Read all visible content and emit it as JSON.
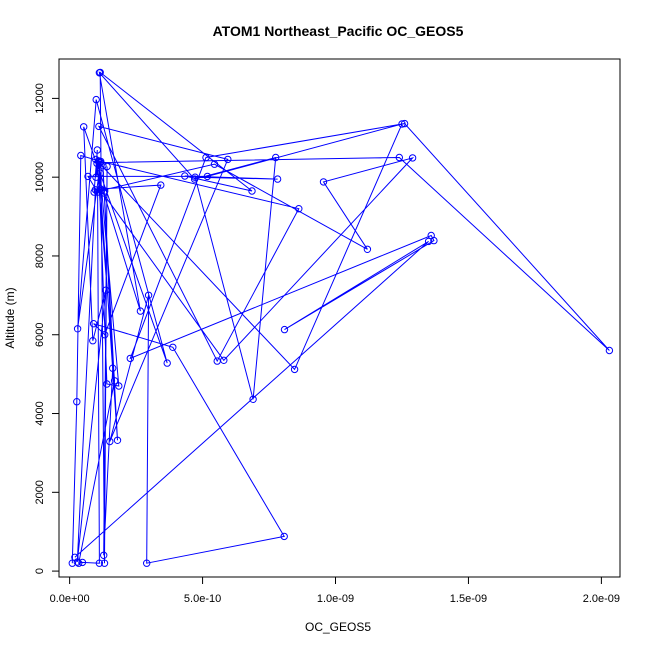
{
  "chart_data": {
    "type": "line",
    "title": "ATOM1 Northeast_Pacific OC_GEOS5",
    "xlabel": "OC_GEOS5",
    "ylabel": "Altitude (m)",
    "xlim": [
      -4e-11,
      2.07e-09
    ],
    "ylim": [
      -150,
      13000
    ],
    "x_ticks": [
      0,
      5e-10,
      1e-09,
      1.5e-09,
      2e-09
    ],
    "x_tick_labels": [
      "0.0e+00",
      "5.0e-10",
      "1.0e-09",
      "1.5e-09",
      "2.0e-09"
    ],
    "y_ticks": [
      0,
      2000,
      4000,
      6000,
      8000,
      10000,
      12000
    ],
    "y_tick_labels": [
      "0",
      "2000",
      "4000",
      "6000",
      "8000",
      "10000",
      "12000"
    ],
    "grid": false,
    "markers": "open-circle",
    "series": [
      {
        "color": "#0000ff",
        "x": [
          1e-11,
          2.7e-11,
          4.2e-11,
          1.17e-10,
          3e-11,
          1e-10,
          3.67e-10,
          5.3e-11,
          8.7e-11,
          1.36e-10,
          2.9e-11,
          9.7e-11,
          1.32e-10,
          1.28e-10,
          2.66e-10,
          1.12e-10,
          4.7e-10,
          7.75e-10,
          6.9e-10,
          4.72e-10,
          7.82e-10,
          4.33e-10,
          6.86e-10,
          1.15e-10,
          1.31e-10,
          1.41e-10,
          1.28e-10,
          1.62e-10,
          1.25e-10,
          1.8e-10,
          1.16e-10,
          3.43e-10,
          1.32e-10,
          9e-11,
          3.88e-10,
          8.07e-10,
          2.9e-10,
          2.97e-10,
          1.51e-10,
          5.95e-10,
          1.1e-10,
          5.55e-10,
          8.62e-10,
          1.1e-10,
          9.9e-11,
          1.04e-10,
          9.2e-11,
          5.45e-10,
          1.12e-09,
          9.55e-10,
          1.29e-09,
          5.8e-10,
          1.18e-10,
          1.09e-10,
          1.4e-10,
          1.85e-10,
          1.15e-10,
          1.03e-10,
          1.69e-10,
          3.4e-11,
          4.8e-11,
          1.12e-10,
          1.05e-10,
          6.9e-11,
          5.18e-10,
          1.25e-09,
          8.46e-10,
          9.8e-11,
          1.16e-10,
          1.24e-09,
          2.03e-09,
          1.26e-09,
          5.13e-10,
          2.28e-10,
          1.36e-09,
          1.37e-09,
          8.08e-10,
          1.35e-09,
          1.98e-11
        ],
        "y": [
          200,
          4300,
          10550,
          10400,
          6150,
          11970,
          5280,
          11280,
          5850,
          7130,
          230,
          9680,
          9650,
          9600,
          6600,
          12650,
          9950,
          10500,
          4360,
          10000,
          9950,
          10030,
          9650,
          12660,
          200,
          10270,
          400,
          5150,
          10290,
          3320,
          9700,
          9800,
          6000,
          6280,
          5680,
          880,
          200,
          7000,
          3290,
          10450,
          11290,
          5330,
          9200,
          10410,
          10000,
          10690,
          9620,
          10330,
          8170,
          9880,
          10490,
          5350,
          9660,
          10390,
          4750,
          4700,
          10100,
          10350,
          4830,
          200,
          220,
          200,
          9620,
          10020,
          10020,
          11350,
          5120,
          10450,
          10370,
          10500,
          5600,
          11360,
          10500,
          5400,
          8520,
          8390,
          6130,
          8370,
          350
        ]
      }
    ]
  }
}
